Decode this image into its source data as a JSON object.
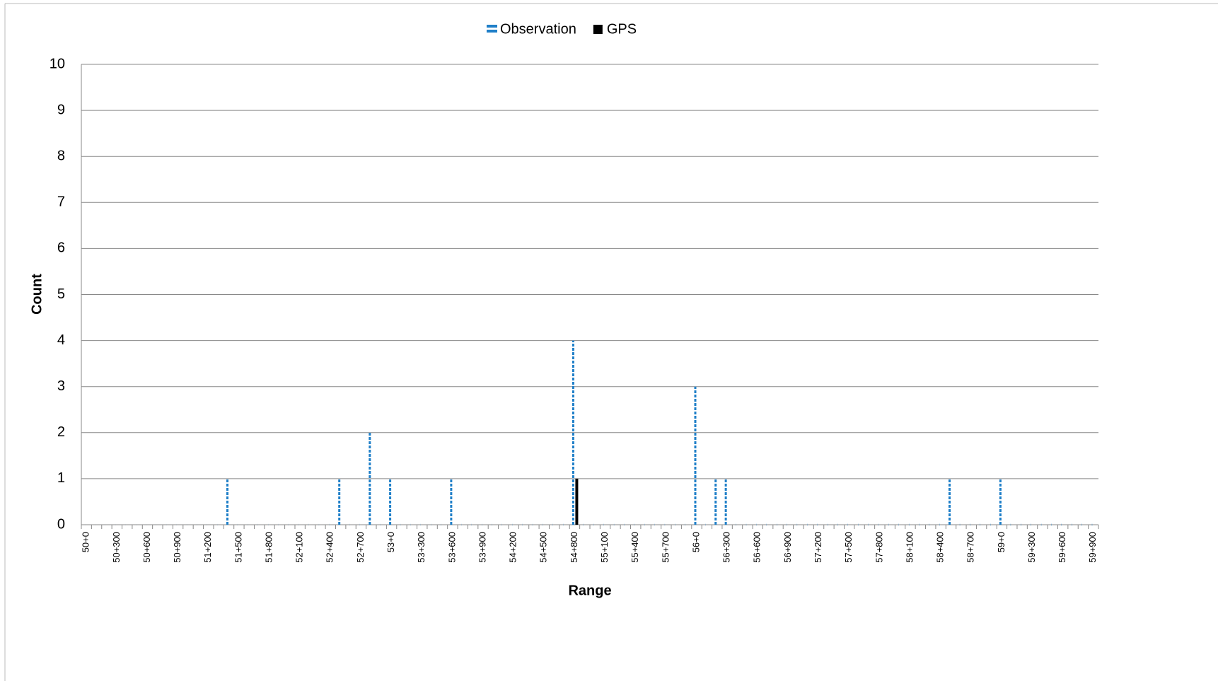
{
  "chart_data": {
    "type": "bar",
    "x_label": "Range",
    "y_label": "Count",
    "categories": [
      "50+0",
      null,
      null,
      "50+300",
      null,
      null,
      "50+600",
      null,
      null,
      "50+900",
      null,
      null,
      "51+200",
      null,
      null,
      "51+500",
      null,
      null,
      "51+800",
      null,
      null,
      "52+100",
      null,
      null,
      "52+400",
      null,
      null,
      "52+700",
      null,
      null,
      "53+0",
      null,
      null,
      "53+300",
      null,
      null,
      "53+600",
      null,
      null,
      "53+900",
      null,
      null,
      "54+200",
      null,
      null,
      "54+500",
      null,
      null,
      "54+800",
      null,
      null,
      "55+100",
      null,
      null,
      "55+400",
      null,
      null,
      "55+700",
      null,
      null,
      "56+0",
      null,
      null,
      "56+300",
      null,
      null,
      "56+600",
      null,
      null,
      "56+900",
      null,
      null,
      "57+200",
      null,
      null,
      "57+500",
      null,
      null,
      "57+800",
      null,
      null,
      "58+100",
      null,
      null,
      "58+400",
      null,
      null,
      "58+700",
      null,
      null,
      "59+0",
      null,
      null,
      "59+300",
      null,
      null,
      "59+600",
      null,
      null,
      "59+900"
    ],
    "series": [
      {
        "name": "Observation",
        "color": "#1f7fc8",
        "values": [
          0,
          0,
          0,
          0,
          0,
          0,
          0,
          0,
          0,
          0,
          0,
          0,
          0,
          0,
          1,
          0,
          0,
          0,
          0,
          0,
          0,
          0,
          0,
          0,
          0,
          1,
          0,
          0,
          2,
          0,
          1,
          0,
          0,
          0,
          0,
          0,
          1,
          0,
          0,
          0,
          0,
          0,
          0,
          0,
          0,
          0,
          0,
          0,
          4,
          0,
          0,
          0,
          0,
          0,
          0,
          0,
          0,
          0,
          0,
          0,
          3,
          0,
          1,
          1,
          0,
          0,
          0,
          0,
          0,
          0,
          0,
          0,
          0,
          0,
          0,
          0,
          0,
          0,
          0,
          0,
          0,
          0,
          0,
          0,
          0,
          1,
          0,
          0,
          0,
          0,
          1,
          0,
          0,
          0,
          0,
          0,
          0,
          0,
          0,
          0
        ]
      },
      {
        "name": "GPS",
        "color": "#000000",
        "values": [
          0,
          0,
          0,
          0,
          0,
          0,
          0,
          0,
          0,
          0,
          0,
          0,
          0,
          0,
          0,
          0,
          0,
          0,
          0,
          0,
          0,
          0,
          0,
          0,
          0,
          0,
          0,
          0,
          0,
          0,
          0,
          0,
          0,
          0,
          0,
          0,
          0,
          0,
          0,
          0,
          0,
          0,
          0,
          0,
          0,
          0,
          0,
          0,
          1,
          0,
          0,
          0,
          0,
          0,
          0,
          0,
          0,
          0,
          0,
          0,
          0,
          0,
          0,
          0,
          0,
          0,
          0,
          0,
          0,
          0,
          0,
          0,
          0,
          0,
          0,
          0,
          0,
          0,
          0,
          0,
          0,
          0,
          0,
          0,
          0,
          0,
          0,
          0,
          0,
          0,
          0,
          0,
          0,
          0,
          0,
          0,
          0,
          0,
          0,
          0
        ]
      }
    ],
    "ylim": [
      0,
      10
    ],
    "yticks": [
      0,
      1,
      2,
      3,
      4,
      5,
      6,
      7,
      8,
      9,
      10
    ],
    "grid": true,
    "legend": "top"
  }
}
